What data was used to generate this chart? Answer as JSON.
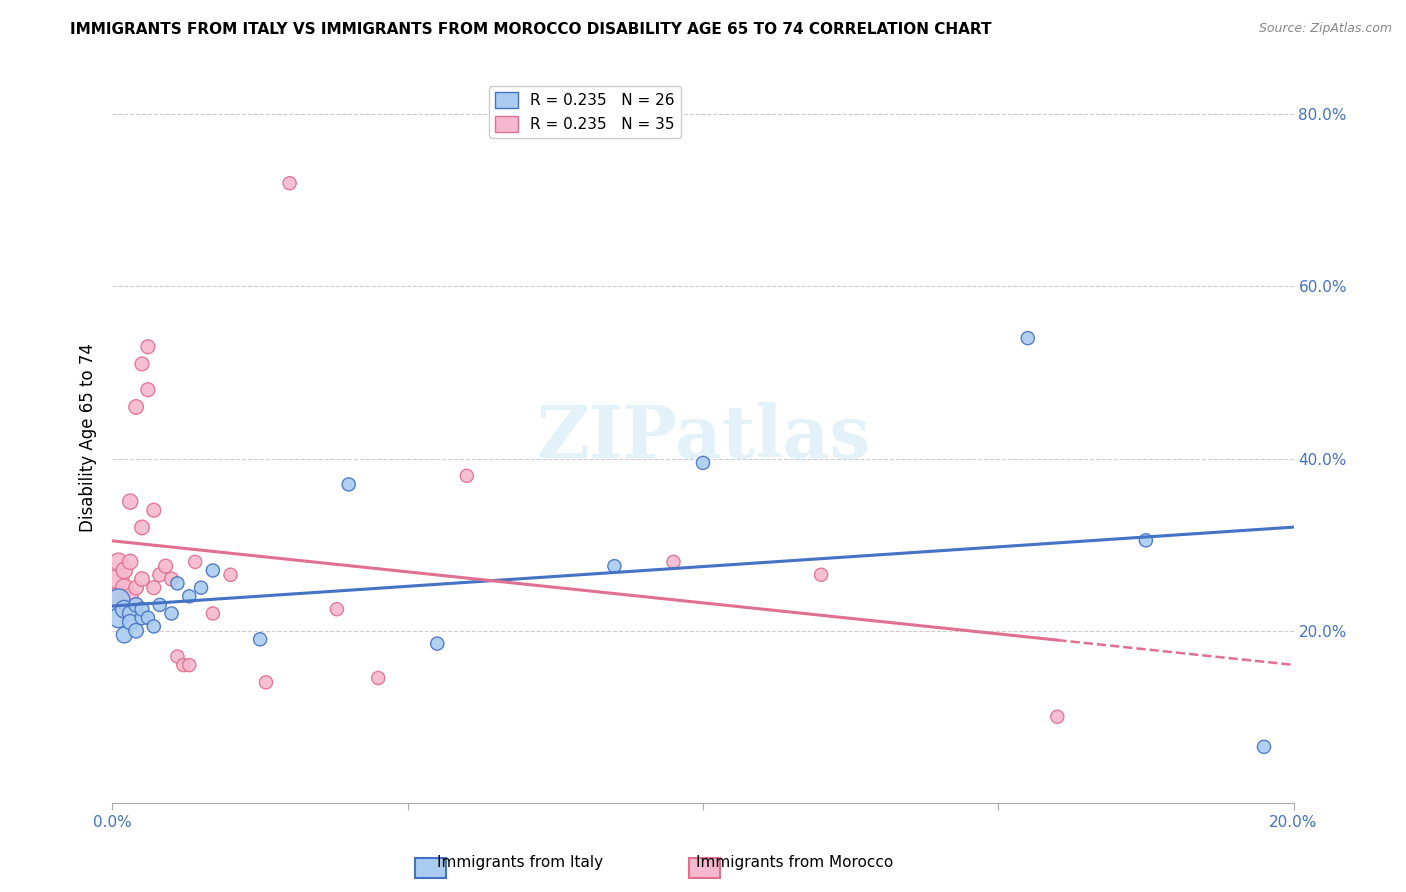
{
  "title": "IMMIGRANTS FROM ITALY VS IMMIGRANTS FROM MOROCCO DISABILITY AGE 65 TO 74 CORRELATION CHART",
  "source": "Source: ZipAtlas.com",
  "ylabel": "Disability Age 65 to 74",
  "xlim": [
    0.0,
    0.2
  ],
  "ylim": [
    0.0,
    0.85
  ],
  "xticks": [
    0.0,
    0.05,
    0.1,
    0.15,
    0.2
  ],
  "xtick_labels": [
    "0.0%",
    "",
    "",
    "",
    "20.0%"
  ],
  "ytick_labels_right": [
    "20.0%",
    "40.0%",
    "60.0%",
    "80.0%"
  ],
  "yticks_right": [
    0.2,
    0.4,
    0.6,
    0.8
  ],
  "italy_R": 0.235,
  "italy_N": 26,
  "morocco_R": 0.235,
  "morocco_N": 35,
  "italy_color": "#aaccf0",
  "morocco_color": "#f5b8ce",
  "italy_line_color": "#4472c4",
  "morocco_line_color": "#e07090",
  "background_color": "#ffffff",
  "italy_x": [
    0.001,
    0.001,
    0.002,
    0.002,
    0.003,
    0.003,
    0.004,
    0.004,
    0.005,
    0.005,
    0.006,
    0.007,
    0.008,
    0.01,
    0.011,
    0.013,
    0.015,
    0.017,
    0.025,
    0.04,
    0.055,
    0.085,
    0.1,
    0.155,
    0.175,
    0.195
  ],
  "italy_y": [
    0.235,
    0.215,
    0.225,
    0.195,
    0.22,
    0.21,
    0.23,
    0.2,
    0.215,
    0.225,
    0.215,
    0.205,
    0.23,
    0.22,
    0.255,
    0.24,
    0.25,
    0.27,
    0.19,
    0.37,
    0.185,
    0.275,
    0.395,
    0.54,
    0.305,
    0.065
  ],
  "morocco_x": [
    0.001,
    0.001,
    0.001,
    0.002,
    0.002,
    0.002,
    0.003,
    0.003,
    0.003,
    0.004,
    0.004,
    0.005,
    0.005,
    0.005,
    0.006,
    0.006,
    0.007,
    0.007,
    0.008,
    0.009,
    0.01,
    0.011,
    0.012,
    0.013,
    0.014,
    0.017,
    0.02,
    0.026,
    0.03,
    0.038,
    0.045,
    0.06,
    0.095,
    0.12,
    0.16
  ],
  "morocco_y": [
    0.26,
    0.24,
    0.28,
    0.25,
    0.27,
    0.23,
    0.24,
    0.28,
    0.35,
    0.25,
    0.46,
    0.26,
    0.32,
    0.51,
    0.53,
    0.48,
    0.25,
    0.34,
    0.265,
    0.275,
    0.26,
    0.17,
    0.16,
    0.16,
    0.28,
    0.22,
    0.265,
    0.14,
    0.72,
    0.225,
    0.145,
    0.38,
    0.28,
    0.265,
    0.1
  ],
  "italy_sizes": [
    280,
    200,
    160,
    130,
    120,
    120,
    110,
    110,
    100,
    100,
    90,
    90,
    90,
    90,
    90,
    90,
    90,
    90,
    90,
    90,
    90,
    90,
    90,
    90,
    90,
    90
  ],
  "morocco_sizes": [
    220,
    180,
    160,
    160,
    140,
    130,
    130,
    120,
    120,
    110,
    110,
    110,
    110,
    100,
    100,
    100,
    100,
    100,
    100,
    100,
    100,
    90,
    90,
    90,
    90,
    90,
    90,
    90,
    90,
    90,
    90,
    90,
    90,
    90,
    90
  ]
}
